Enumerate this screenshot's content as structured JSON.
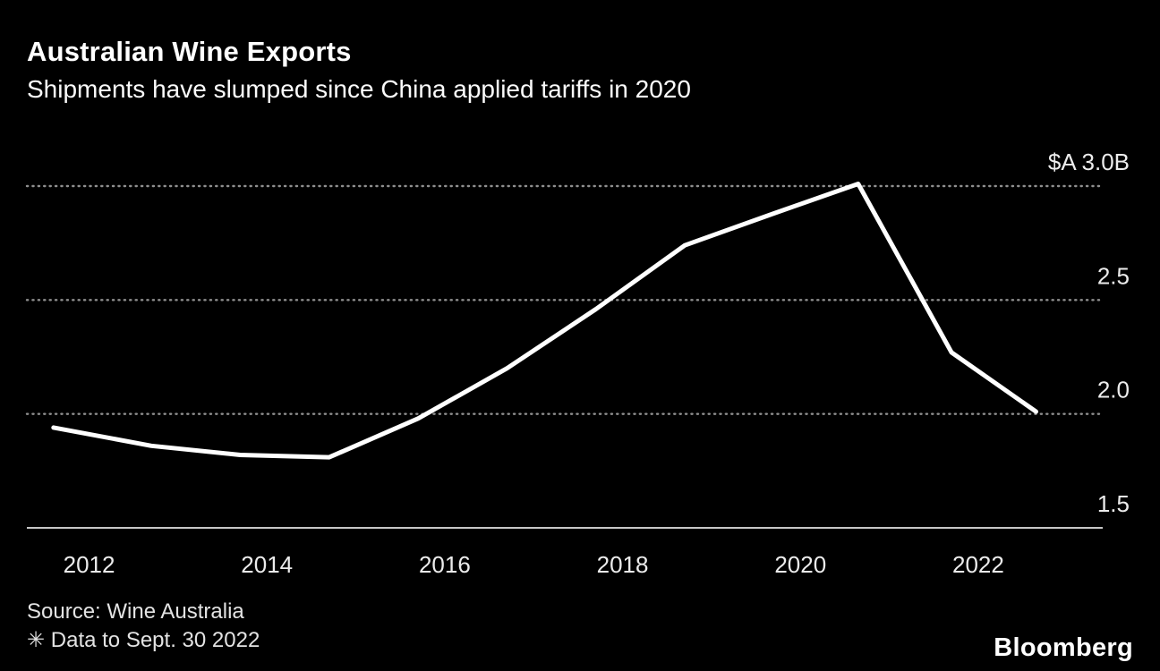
{
  "header": {
    "title": "Australian Wine Exports",
    "subtitle": "Shipments have slumped since China applied tariffs in 2020"
  },
  "footer": {
    "source": "Source: Wine Australia",
    "note": "✳ Data to Sept. 30 2022",
    "brand": "Bloomberg"
  },
  "chart_data": {
    "type": "line",
    "title": "Australian Wine Exports",
    "subtitle": "Shipments have slumped since China applied tariffs in 2020",
    "series": [
      {
        "name": "Australian Wine Exports",
        "x": [
          2011.6,
          2012.7,
          2013.7,
          2014.7,
          2015.7,
          2016.7,
          2017.7,
          2018.7,
          2019.7,
          2020.65,
          2021.7,
          2022.65
        ],
        "values": [
          1.94,
          1.86,
          1.82,
          1.81,
          1.98,
          2.2,
          2.46,
          2.74,
          2.88,
          3.01,
          2.27,
          2.01
        ]
      }
    ],
    "x_ticks": [
      2012,
      2014,
      2016,
      2018,
      2020,
      2022
    ],
    "y_ticks": [
      {
        "value": 3.0,
        "label": "$A 3.0B"
      },
      {
        "value": 2.5,
        "label": "2.5"
      },
      {
        "value": 2.0,
        "label": "2.0"
      },
      {
        "value": 1.5,
        "label": "1.5"
      }
    ],
    "unit": "$A billions",
    "xlim": [
      2011.3,
      2023.4
    ],
    "ylim": [
      1.5,
      3.0
    ],
    "grid": "dotted-horizontal",
    "legend": "none",
    "colors": {
      "line": "#ffffff",
      "grid": "#8f8f8f",
      "axis": "#c7c7c7",
      "background": "#000000",
      "text": "#ececec"
    }
  }
}
